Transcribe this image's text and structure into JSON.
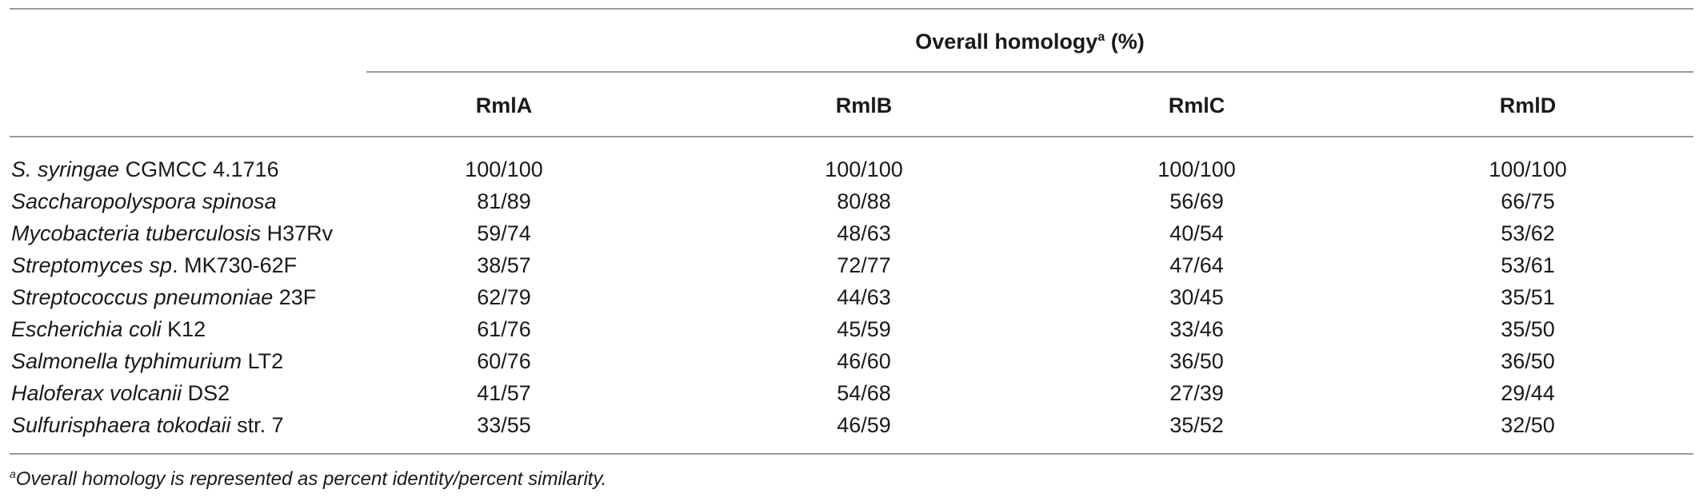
{
  "table": {
    "group_header": {
      "label": "Overall homology",
      "marker": "a",
      "unit": " (%)"
    },
    "columns": [
      "RmlA",
      "RmlB",
      "RmlC",
      "RmlD"
    ],
    "rows": [
      {
        "species": "S. syringae",
        "strain": " CGMCC 4.1716",
        "values": [
          "100/100",
          "100/100",
          "100/100",
          "100/100"
        ]
      },
      {
        "species": "Saccharopolyspora spinosa",
        "strain": "",
        "values": [
          "81/89",
          "80/88",
          "56/69",
          "66/75"
        ]
      },
      {
        "species": "Mycobacteria tuberculosis",
        "strain": " H37Rv",
        "values": [
          "59/74",
          "48/63",
          "40/54",
          "53/62"
        ]
      },
      {
        "species": "Streptomyces sp",
        "strain": ". MK730-62F",
        "values": [
          "38/57",
          "72/77",
          "47/64",
          "53/61"
        ]
      },
      {
        "species": "Streptococcus pneumoniae",
        "strain": " 23F",
        "values": [
          "62/79",
          "44/63",
          "30/45",
          "35/51"
        ]
      },
      {
        "species": "Escherichia coli",
        "strain": " K12",
        "values": [
          "61/76",
          "45/59",
          "33/46",
          "35/50"
        ]
      },
      {
        "species": "Salmonella typhimurium",
        "strain": " LT2",
        "values": [
          "60/76",
          "46/60",
          "36/50",
          "36/50"
        ]
      },
      {
        "species": "Haloferax volcanii",
        "strain": " DS2",
        "values": [
          "41/57",
          "54/68",
          "27/39",
          "29/44"
        ]
      },
      {
        "species": "Sulfurisphaera tokodaii",
        "strain": " str. 7",
        "values": [
          "33/55",
          "46/59",
          "35/52",
          "32/50"
        ]
      }
    ]
  },
  "footnote": {
    "marker": "a",
    "text": "Overall homology is represented as percent identity/percent similarity."
  }
}
